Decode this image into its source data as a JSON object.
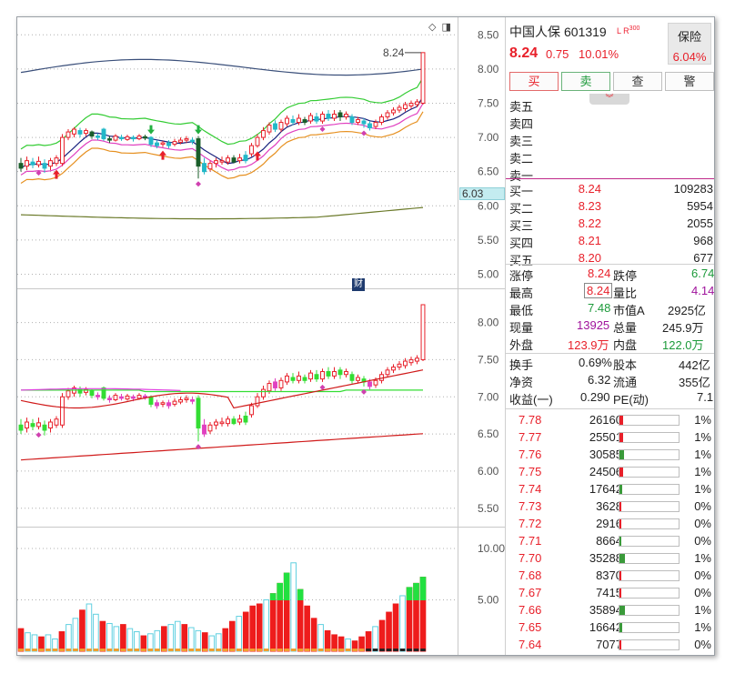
{
  "stock": {
    "name": "中国人保",
    "code": "601319",
    "flags": "L R",
    "flag_sup": "300",
    "price": "8.24",
    "change": "0.75",
    "change_pct": "10.01%",
    "sector_name": "保险",
    "sector_pct": "6.04%"
  },
  "actions": {
    "buy": "买",
    "sell": "卖",
    "query": "查",
    "alert": "警"
  },
  "expand_glyph": "︾",
  "sell_book": [
    {
      "label": "卖五",
      "price": "",
      "volume": ""
    },
    {
      "label": "卖四",
      "price": "",
      "volume": ""
    },
    {
      "label": "卖三",
      "price": "",
      "volume": ""
    },
    {
      "label": "卖二",
      "price": "",
      "volume": ""
    },
    {
      "label": "卖一",
      "price": "",
      "volume": ""
    }
  ],
  "buy_book": [
    {
      "label": "买一",
      "price": "8.24",
      "volume": "109283"
    },
    {
      "label": "买二",
      "price": "8.23",
      "volume": "5954"
    },
    {
      "label": "买三",
      "price": "8.22",
      "volume": "2055"
    },
    {
      "label": "买四",
      "price": "8.21",
      "volume": "968"
    },
    {
      "label": "买五",
      "price": "8.20",
      "volume": "677"
    }
  ],
  "stats": {
    "limit_up_label": "涨停",
    "limit_up": "8.24",
    "limit_down_label": "跌停",
    "limit_down": "6.74",
    "high_label": "最高",
    "high": "8.24",
    "vol_ratio_label": "量比",
    "vol_ratio": "4.14",
    "low_label": "最低",
    "low": "7.48",
    "mcap_a_label": "市值A",
    "mcap_a": "2925亿",
    "cur_vol_label": "现量",
    "cur_vol": "13925",
    "total_vol_label": "总量",
    "total_vol": "245.9万",
    "outer_label": "外盘",
    "outer": "123.9万",
    "inner_label": "内盘",
    "inner": "122.0万",
    "turnover_label": "换手",
    "turnover": "0.69%",
    "equity_label": "股本",
    "equity": "442亿",
    "nav_label": "净资",
    "nav": "6.32",
    "float_label": "流通",
    "float": "355亿",
    "eps_label": "收益(一)",
    "eps": "0.290",
    "pe_label": "PE(动)",
    "pe": "7.1"
  },
  "ticks": [
    {
      "price": "7.78",
      "volume": "26160",
      "pct": "1%",
      "fill": 0.06,
      "color": "#e8202a",
      "lead": ""
    },
    {
      "price": "7.77",
      "volume": "25501",
      "pct": "1%",
      "fill": 0.06,
      "color": "#e8202a",
      "lead": ""
    },
    {
      "price": "7.76",
      "volume": "30585",
      "pct": "1%",
      "fill": 0.08,
      "color": "#3a9a3a",
      "lead": ""
    },
    {
      "price": "7.75",
      "volume": "24506",
      "pct": "1%",
      "fill": 0.06,
      "color": "#e8202a",
      "lead": ""
    },
    {
      "price": "7.74",
      "volume": "17642",
      "pct": "1%",
      "fill": 0.05,
      "color": "#3a9a3a",
      "lead": ""
    },
    {
      "price": "7.73",
      "volume": "3628",
      "pct": "0%",
      "fill": 0.02,
      "color": "#e8202a",
      "lead": ""
    },
    {
      "price": "7.72",
      "volume": "2916",
      "pct": "0%",
      "fill": 0.02,
      "color": "#e8202a",
      "lead": ""
    },
    {
      "price": "7.71",
      "volume": "8664",
      "pct": "0%",
      "fill": 0.03,
      "color": "#3a9a3a",
      "lead": ""
    },
    {
      "price": "7.70",
      "volume": "35288",
      "pct": "1%",
      "fill": 0.09,
      "color": "#3a9a3a",
      "lead": ""
    },
    {
      "price": "7.68",
      "volume": "8370",
      "pct": "0%",
      "fill": 0.03,
      "color": "#e8202a",
      "lead": ""
    },
    {
      "price": "7.67",
      "volume": "7415",
      "pct": "0%",
      "fill": 0.03,
      "color": "#e8202a",
      "lead": ""
    },
    {
      "price": "7.66",
      "volume": "35894",
      "pct": "1%",
      "fill": 0.09,
      "color": "#3a9a3a",
      "lead": ""
    },
    {
      "price": "7.65",
      "volume": "16642",
      "pct": "1%",
      "fill": 0.05,
      "color": "#3a9a3a",
      "lead": ""
    },
    {
      "price": "7.64",
      "volume": "7077",
      "pct": "0%",
      "fill": 0.03,
      "color": "#e8202a",
      "lead": ""
    }
  ],
  "charts": {
    "price_tag": "6.03",
    "max_label": "8.24",
    "cai_label": "财",
    "top_icons": [
      "◇",
      "◨"
    ]
  },
  "chart_data": [
    {
      "type": "line",
      "title": "",
      "y_ticks": [
        "8.50",
        "8.00",
        "7.50",
        "7.00",
        "6.50",
        "6.00",
        "5.50",
        "5.00"
      ],
      "ylim": [
        4.9,
        8.65
      ],
      "candles": [
        [
          6.62,
          6.55,
          6.7,
          6.5
        ],
        [
          6.58,
          6.66,
          6.72,
          6.52
        ],
        [
          6.64,
          6.6,
          6.7,
          6.55
        ],
        [
          6.6,
          6.65,
          6.72,
          6.56
        ],
        [
          6.62,
          6.55,
          6.68,
          6.48
        ],
        [
          6.58,
          6.66,
          6.7,
          6.52
        ],
        [
          6.62,
          6.7,
          6.74,
          6.58
        ],
        [
          6.62,
          7.0,
          7.05,
          6.58
        ],
        [
          7.0,
          7.08,
          7.12,
          6.96
        ],
        [
          7.05,
          7.12,
          7.15,
          7.0
        ],
        [
          7.1,
          7.05,
          7.14,
          7.0
        ],
        [
          7.06,
          7.1,
          7.13,
          7.02
        ],
        [
          7.08,
          7.02,
          7.1,
          6.98
        ],
        [
          7.02,
          7.0,
          7.06,
          6.96
        ],
        [
          7.12,
          6.98,
          7.14,
          6.95
        ],
        [
          6.98,
          6.96,
          7.02,
          6.92
        ],
        [
          6.96,
          7.02,
          7.05,
          6.94
        ],
        [
          7.0,
          6.98,
          7.04,
          6.95
        ],
        [
          6.97,
          7.01,
          7.04,
          6.95
        ],
        [
          7.0,
          6.98,
          7.03,
          6.94
        ],
        [
          6.98,
          7.02,
          7.05,
          6.96
        ],
        [
          7.01,
          6.99,
          7.04,
          6.96
        ],
        [
          7.0,
          6.9,
          7.02,
          6.86
        ],
        [
          6.92,
          6.88,
          6.96,
          6.84
        ],
        [
          6.9,
          6.92,
          6.95,
          6.86
        ],
        [
          6.92,
          6.88,
          6.96,
          6.84
        ],
        [
          6.9,
          6.94,
          6.98,
          6.87
        ],
        [
          6.93,
          6.96,
          7.0,
          6.9
        ],
        [
          6.96,
          6.98,
          7.02,
          6.92
        ],
        [
          6.96,
          6.94,
          7.0,
          6.9
        ],
        [
          6.98,
          6.58,
          7.02,
          6.4
        ],
        [
          6.62,
          6.5,
          6.7,
          6.46
        ],
        [
          6.54,
          6.62,
          6.66,
          6.5
        ],
        [
          6.62,
          6.66,
          6.7,
          6.56
        ],
        [
          6.64,
          6.66,
          6.72,
          6.6
        ],
        [
          6.64,
          6.7,
          6.74,
          6.6
        ],
        [
          6.7,
          6.64,
          6.74,
          6.62
        ],
        [
          6.66,
          6.7,
          6.76,
          6.62
        ],
        [
          6.74,
          6.66,
          6.8,
          6.62
        ],
        [
          6.76,
          6.88,
          6.92,
          6.72
        ],
        [
          6.88,
          7.0,
          7.05,
          6.85
        ],
        [
          7.0,
          7.1,
          7.15,
          6.96
        ],
        [
          7.08,
          7.18,
          7.22,
          7.04
        ],
        [
          7.2,
          7.12,
          7.25,
          7.08
        ],
        [
          7.12,
          7.22,
          7.26,
          7.08
        ],
        [
          7.2,
          7.28,
          7.32,
          7.16
        ],
        [
          7.26,
          7.22,
          7.32,
          7.18
        ],
        [
          7.22,
          7.28,
          7.34,
          7.18
        ],
        [
          7.26,
          7.22,
          7.3,
          7.18
        ],
        [
          7.24,
          7.32,
          7.36,
          7.2
        ],
        [
          7.3,
          7.24,
          7.36,
          7.2
        ],
        [
          7.24,
          7.34,
          7.38,
          7.2
        ],
        [
          7.34,
          7.28,
          7.4,
          7.24
        ],
        [
          7.28,
          7.34,
          7.4,
          7.24
        ],
        [
          7.36,
          7.3,
          7.4,
          7.24
        ],
        [
          7.3,
          7.34,
          7.38,
          7.26
        ],
        [
          7.3,
          7.22,
          7.34,
          7.18
        ],
        [
          7.22,
          7.26,
          7.3,
          7.18
        ],
        [
          7.24,
          7.2,
          7.28,
          7.14
        ],
        [
          7.2,
          7.14,
          7.24,
          7.1
        ],
        [
          7.16,
          7.22,
          7.26,
          7.12
        ],
        [
          7.22,
          7.3,
          7.34,
          7.18
        ],
        [
          7.3,
          7.36,
          7.4,
          7.26
        ],
        [
          7.36,
          7.4,
          7.44,
          7.32
        ],
        [
          7.4,
          7.44,
          7.48,
          7.36
        ],
        [
          7.42,
          7.48,
          7.52,
          7.38
        ],
        [
          7.46,
          7.5,
          7.54,
          7.42
        ],
        [
          7.48,
          7.52,
          7.56,
          7.44
        ],
        [
          7.5,
          8.24,
          8.24,
          7.48
        ]
      ]
    },
    {
      "type": "line",
      "title": "",
      "y_ticks": [
        "8.00",
        "7.50",
        "7.00",
        "6.50",
        "6.00",
        "5.50"
      ],
      "ylim": [
        5.35,
        8.35
      ]
    },
    {
      "type": "bar",
      "title": "",
      "y_ticks": [
        "10.00",
        "5.00"
      ],
      "ylim": [
        0,
        11.5
      ],
      "values": [
        2.2,
        1.8,
        1.6,
        1.4,
        1.6,
        1.2,
        1.9,
        2.6,
        3.2,
        4.0,
        4.6,
        3.6,
        2.9,
        2.7,
        2.4,
        2.6,
        2.2,
        1.9,
        1.5,
        1.7,
        2.0,
        2.4,
        2.6,
        2.9,
        2.6,
        2.3,
        2.0,
        1.8,
        1.5,
        1.7,
        2.2,
        2.9,
        3.4,
        3.8,
        4.4,
        4.6,
        5.0,
        5.6,
        6.6,
        7.6,
        8.6,
        6.0,
        4.4,
        3.2,
        2.6,
        2.0,
        1.6,
        1.4,
        1.2,
        1.0,
        1.4,
        1.9,
        2.4,
        3.0,
        3.8,
        4.6,
        5.4,
        6.2,
        6.6,
        7.2
      ]
    }
  ]
}
